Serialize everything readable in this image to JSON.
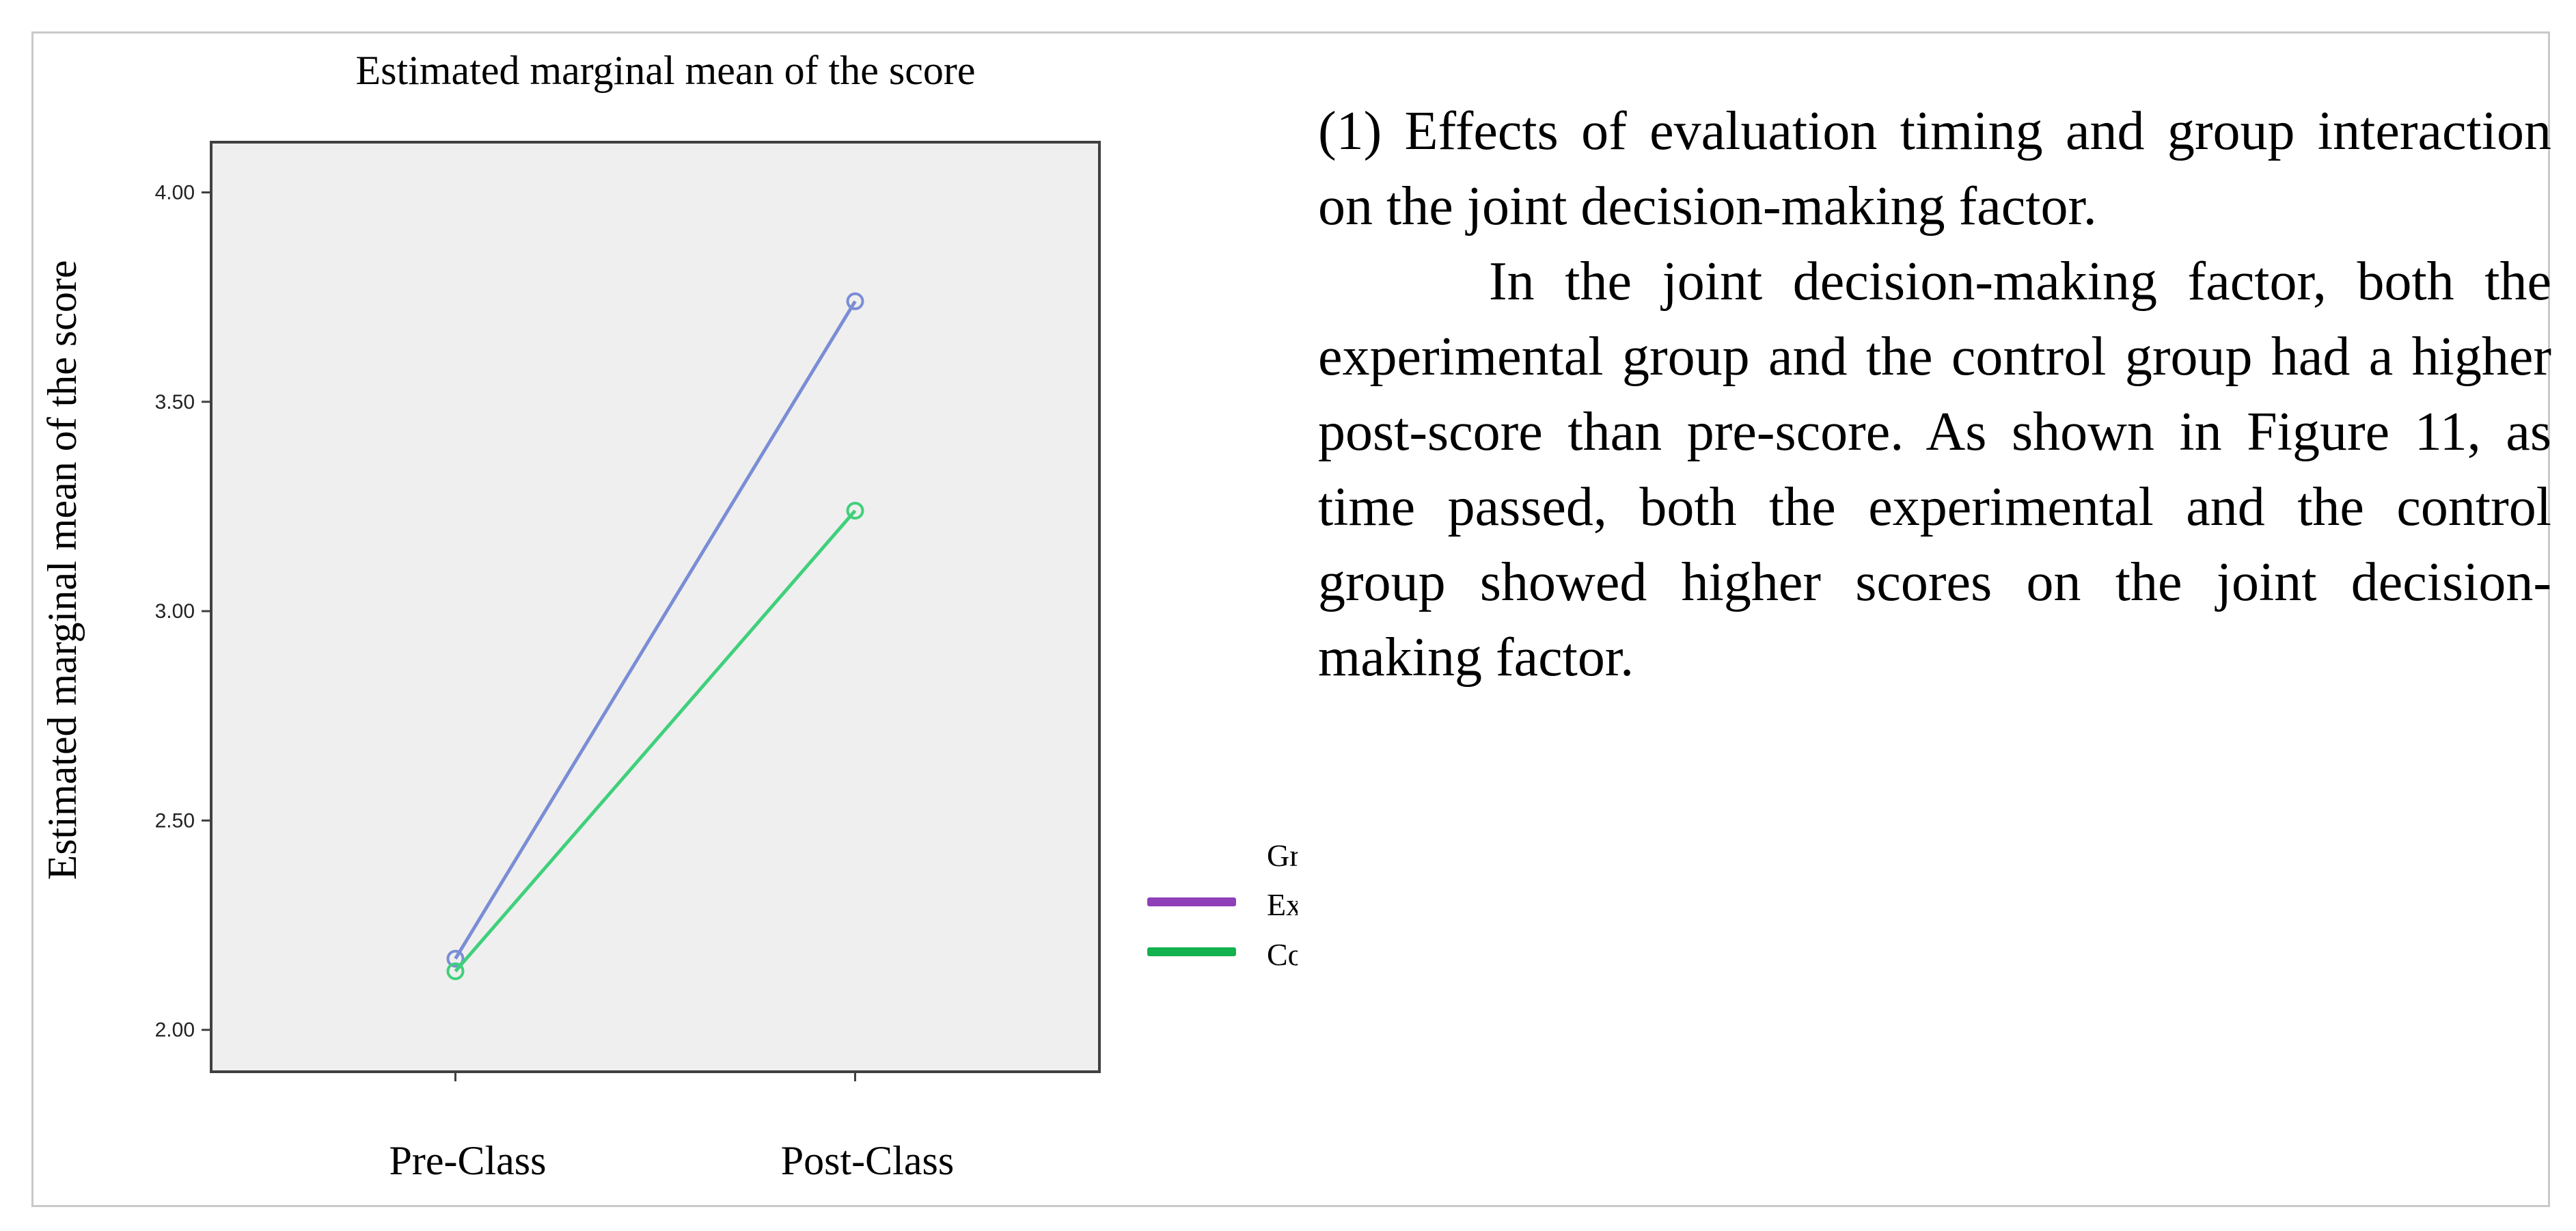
{
  "colors": {
    "background": "#ffffff",
    "plot_background": "#efefef",
    "experimental": "#7a8dd6",
    "control": "#3fd07b",
    "legend_experimental": "#8f3fb8",
    "legend_control": "#12b24f",
    "text": "#000000"
  },
  "chart_data": {
    "type": "line",
    "title": "Estimated marginal mean of the score",
    "xlabel": "",
    "ylabel": "Estimated marginal mean of the score",
    "categories": [
      "Pre-Class",
      "Post-Class"
    ],
    "ylim": [
      1.9,
      4.12
    ],
    "yticks": [
      "2.00",
      "2.50",
      "3.00",
      "3.50",
      "4.00"
    ],
    "grid": false,
    "legend": {
      "title": "Group",
      "position": "right",
      "entries": [
        "Experimental",
        "Control"
      ]
    },
    "series": [
      {
        "name": "Experimental",
        "values": [
          2.17,
          3.74
        ]
      },
      {
        "name": "Control",
        "values": [
          2.14,
          3.24
        ]
      }
    ]
  },
  "text": {
    "heading": "(1) Effects of evaluation timing and group interaction on the joint decision-making factor.",
    "paragraph": "In the joint decision-making factor, both the experimental group and the control group had a higher post-score than pre-score. As shown in Figure 11, as time passed, both the experimental and the control group showed higher scores on the joint decision-making factor."
  }
}
